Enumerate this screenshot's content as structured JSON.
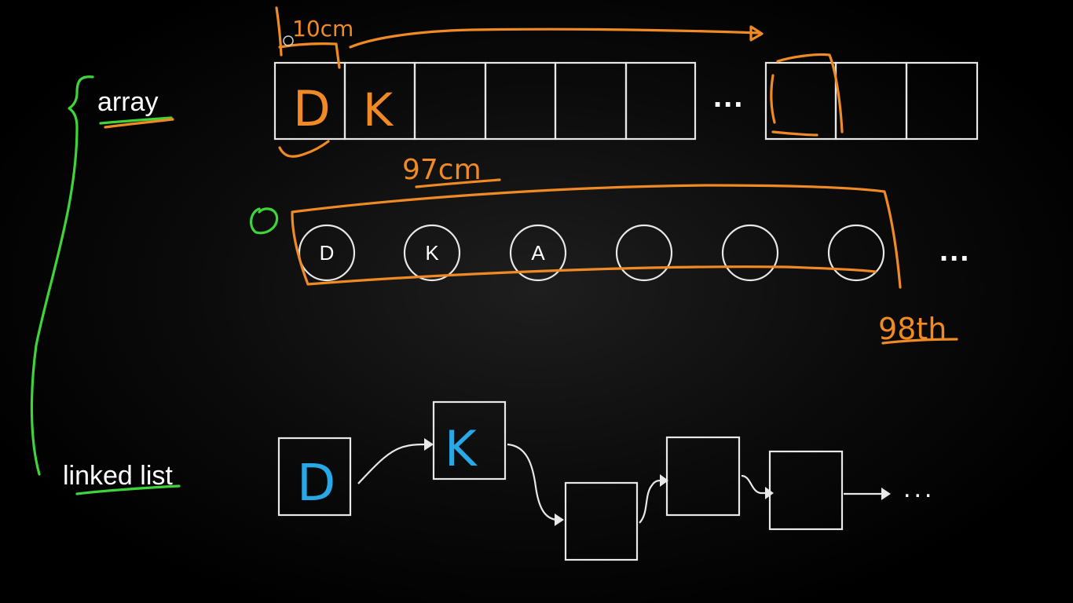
{
  "labels": {
    "array": "array",
    "linked_list": "linked list"
  },
  "array": {
    "cell_letters": [
      "D",
      "K",
      "",
      "",
      "",
      "",
      "",
      "",
      ""
    ],
    "ellipsis": "..."
  },
  "circles": {
    "letters": [
      "D",
      "K",
      "A",
      "",
      "",
      ""
    ],
    "ellipsis": "..."
  },
  "linked_list": {
    "node_letters": [
      "D",
      "K",
      "",
      "",
      "",
      ""
    ],
    "ellipsis": "..."
  },
  "annotations": {
    "top_measure": "10cm",
    "middle_measure": "97cm",
    "ordinal": "98th",
    "zero_marker": "0"
  },
  "colors": {
    "annotation_orange": "#f08a24",
    "annotation_green": "#3fd43a",
    "letter_blue": "#29a8e8",
    "diagram_white": "#e8e8e8",
    "background": "#000000"
  }
}
